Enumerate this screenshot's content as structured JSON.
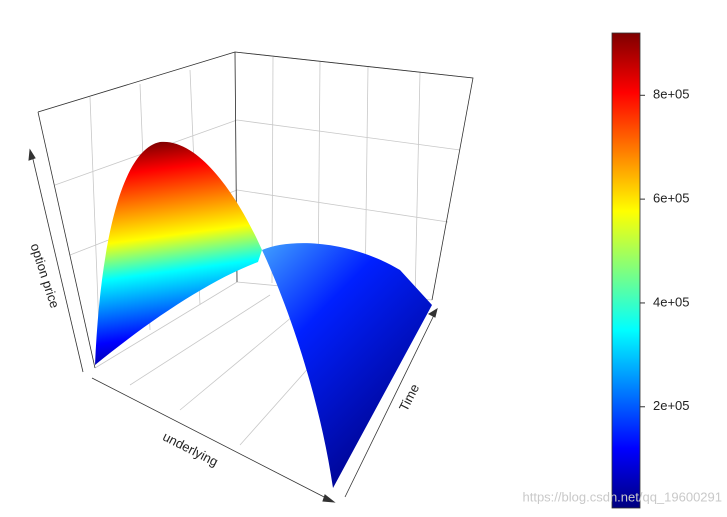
{
  "chart_data": {
    "type": "surface",
    "xlabel": "underlying",
    "ylabel": "Time",
    "zlabel": "option price",
    "zlim": [
      5000,
      920000
    ],
    "zticks": [
      {
        "value": 200000,
        "label": "2e+05"
      },
      {
        "value": 400000,
        "label": "4e+05"
      },
      {
        "value": 600000,
        "label": "6e+05"
      },
      {
        "value": 800000,
        "label": "8e+05"
      }
    ],
    "palette": [
      "#00007f",
      "#0000ff",
      "#007fff",
      "#00ffff",
      "#7fff7f",
      "#ffff00",
      "#ff7f00",
      "#ff0000",
      "#7f0000"
    ]
  },
  "watermark": "https://blog.csdn.net/qq_19600291"
}
